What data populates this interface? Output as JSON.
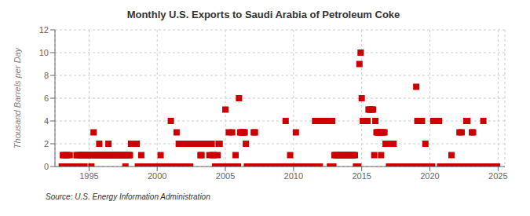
{
  "chart_data": {
    "type": "scatter",
    "title": "Monthly U.S. Exports to Saudi Arabia of Petroleum Coke",
    "ylabel": "Thousand Barrels per Day",
    "source": "Source: U.S. Energy Information Administration",
    "color": "#cc0000",
    "marker": "square",
    "grid": true,
    "xlim": [
      1992.5,
      2025.5
    ],
    "xticks": [
      1995,
      2000,
      2005,
      2010,
      2015,
      2020,
      2025
    ],
    "ylim": [
      0,
      12
    ],
    "yticks": [
      0,
      2,
      4,
      6,
      8,
      10,
      12
    ],
    "x": [
      1993.0,
      1993.08,
      1993.17,
      1993.25,
      1993.33,
      1993.42,
      1993.5,
      1993.58,
      1993.67,
      1993.75,
      1993.83,
      1993.92,
      1994.0,
      1994.08,
      1994.17,
      1994.25,
      1994.33,
      1994.42,
      1994.5,
      1994.58,
      1994.67,
      1994.75,
      1994.83,
      1994.92,
      1995.0,
      1995.08,
      1995.17,
      1995.25,
      1995.33,
      1995.42,
      1995.5,
      1995.58,
      1995.67,
      1995.75,
      1995.83,
      1995.92,
      1996.0,
      1996.08,
      1996.17,
      1996.25,
      1996.33,
      1996.42,
      1996.5,
      1996.58,
      1996.67,
      1996.75,
      1996.83,
      1996.92,
      1997.0,
      1997.08,
      1997.17,
      1997.25,
      1997.33,
      1997.42,
      1997.5,
      1997.58,
      1997.67,
      1997.75,
      1997.83,
      1997.92,
      1998.0,
      1998.08,
      1998.17,
      1998.25,
      1998.33,
      1998.42,
      1998.5,
      1998.58,
      1998.67,
      1998.75,
      1998.83,
      1998.92,
      1999.0,
      1999.08,
      1999.17,
      1999.25,
      1999.33,
      1999.42,
      1999.5,
      1999.58,
      1999.67,
      1999.75,
      1999.83,
      1999.92,
      2000.0,
      2000.08,
      2000.17,
      2000.25,
      2000.33,
      2000.42,
      2000.5,
      2000.58,
      2000.67,
      2000.75,
      2000.83,
      2000.92,
      2001.0,
      2001.08,
      2001.17,
      2001.25,
      2001.33,
      2001.42,
      2001.5,
      2001.58,
      2001.67,
      2001.75,
      2001.83,
      2001.92,
      2002.0,
      2002.08,
      2002.17,
      2002.25,
      2002.33,
      2002.42,
      2002.5,
      2002.58,
      2002.67,
      2002.75,
      2002.83,
      2002.92,
      2003.0,
      2003.08,
      2003.17,
      2003.25,
      2003.33,
      2003.42,
      2003.5,
      2003.58,
      2003.67,
      2003.75,
      2003.83,
      2003.92,
      2004.0,
      2004.08,
      2004.17,
      2004.25,
      2004.33,
      2004.42,
      2004.5,
      2004.58,
      2004.67,
      2004.75,
      2004.83,
      2004.92,
      2005.0,
      2005.08,
      2005.17,
      2005.25,
      2005.33,
      2005.42,
      2005.5,
      2005.58,
      2005.67,
      2005.75,
      2005.83,
      2005.92,
      2006.0,
      2006.08,
      2006.17,
      2006.25,
      2006.33,
      2006.42,
      2006.5,
      2006.58,
      2006.67,
      2006.75,
      2006.83,
      2006.92,
      2007.0,
      2007.08,
      2007.17,
      2007.25,
      2007.33,
      2007.42,
      2007.5,
      2007.58,
      2007.67,
      2007.75,
      2007.83,
      2007.92,
      2008.0,
      2008.08,
      2008.17,
      2008.25,
      2008.33,
      2008.42,
      2008.5,
      2008.58,
      2008.67,
      2008.75,
      2008.83,
      2008.92,
      2009.0,
      2009.08,
      2009.17,
      2009.25,
      2009.33,
      2009.42,
      2009.5,
      2009.58,
      2009.67,
      2009.75,
      2009.83,
      2009.92,
      2010.0,
      2010.08,
      2010.17,
      2010.25,
      2010.33,
      2010.42,
      2010.5,
      2010.58,
      2010.67,
      2010.75,
      2010.83,
      2010.92,
      2011.0,
      2011.08,
      2011.17,
      2011.25,
      2011.33,
      2011.42,
      2011.5,
      2011.58,
      2011.67,
      2011.75,
      2011.83,
      2011.92,
      2012.0,
      2012.08,
      2012.17,
      2012.25,
      2012.33,
      2012.42,
      2012.5,
      2012.58,
      2012.67,
      2012.75,
      2012.83,
      2012.92,
      2013.0,
      2013.08,
      2013.17,
      2013.25,
      2013.33,
      2013.42,
      2013.5,
      2013.58,
      2013.67,
      2013.75,
      2013.83,
      2013.92,
      2014.0,
      2014.08,
      2014.17,
      2014.25,
      2014.33,
      2014.42,
      2014.5,
      2014.58,
      2014.67,
      2014.75,
      2014.83,
      2014.92,
      2015.0,
      2015.08,
      2015.17,
      2015.25,
      2015.33,
      2015.42,
      2015.5,
      2015.58,
      2015.67,
      2015.75,
      2015.83,
      2015.92,
      2016.0,
      2016.08,
      2016.17,
      2016.25,
      2016.33,
      2016.42,
      2016.5,
      2016.58,
      2016.67,
      2016.75,
      2016.83,
      2016.92,
      2017.0,
      2017.08,
      2017.17,
      2017.25,
      2017.33,
      2017.42,
      2017.5,
      2017.58,
      2017.67,
      2017.75,
      2017.83,
      2017.92,
      2018.0,
      2018.08,
      2018.17,
      2018.25,
      2018.33,
      2018.42,
      2018.5,
      2018.58,
      2018.67,
      2018.75,
      2018.83,
      2018.92,
      2019.0,
      2019.08,
      2019.17,
      2019.25,
      2019.33,
      2019.42,
      2019.5,
      2019.58,
      2019.67,
      2019.75,
      2019.83,
      2019.92,
      2020.0,
      2020.08,
      2020.17,
      2020.25,
      2020.33,
      2020.42,
      2020.5,
      2020.58,
      2020.67,
      2020.75,
      2020.83,
      2020.92,
      2021.0,
      2021.08,
      2021.17,
      2021.25,
      2021.33,
      2021.42,
      2021.5,
      2021.58,
      2021.67,
      2021.75,
      2021.83,
      2021.92,
      2022.0,
      2022.08,
      2022.17,
      2022.25,
      2022.33,
      2022.42,
      2022.5,
      2022.58,
      2022.67,
      2022.75,
      2022.83,
      2022.92,
      2023.0,
      2023.08,
      2023.17,
      2023.25,
      2023.33,
      2023.42,
      2023.5,
      2023.58,
      2023.67,
      2023.75,
      2023.83,
      2023.92,
      2024.0,
      2024.08,
      2024.17,
      2024.25,
      2024.33,
      2024.42,
      2024.5,
      2024.58,
      2024.67,
      2024.75,
      2024.83,
      2024.92
    ],
    "values": [
      0,
      1,
      1,
      0,
      1,
      1,
      0,
      1,
      0,
      0,
      0,
      0,
      0,
      1,
      1,
      0,
      1,
      1,
      1,
      1,
      0,
      1,
      1,
      1,
      1,
      1,
      0,
      1,
      3,
      1,
      1,
      1,
      1,
      2,
      1,
      1,
      1,
      1,
      1,
      1,
      1,
      2,
      1,
      1,
      1,
      1,
      1,
      1,
      1,
      1,
      1,
      1,
      1,
      1,
      1,
      1,
      0,
      1,
      1,
      1,
      1,
      2,
      2,
      2,
      2,
      2,
      2,
      0,
      0,
      0,
      1,
      0,
      0,
      0,
      0,
      0,
      0,
      0,
      0,
      0,
      0,
      0,
      0,
      0,
      0,
      0,
      0,
      1,
      0,
      0,
      0,
      0,
      0,
      0,
      0,
      0,
      4,
      0,
      0,
      0,
      0,
      3,
      0,
      2,
      2,
      2,
      2,
      0,
      2,
      2,
      2,
      2,
      0,
      0,
      2,
      2,
      2,
      2,
      2,
      2,
      2,
      2,
      1,
      1,
      2,
      2,
      2,
      2,
      2,
      2,
      1,
      2,
      2,
      1,
      1,
      0,
      0,
      1,
      2,
      2,
      0,
      0,
      0,
      0,
      5,
      0,
      0,
      3,
      0,
      0,
      3,
      0,
      0,
      1,
      0,
      0,
      6,
      3,
      3,
      3,
      3,
      3,
      2,
      0,
      0,
      0,
      0,
      0,
      0,
      3,
      3,
      0,
      0,
      0,
      0,
      0,
      0,
      0,
      0,
      0,
      0,
      0,
      0,
      0,
      0,
      0,
      0,
      0,
      0,
      0,
      0,
      0,
      0,
      0,
      0,
      0,
      0,
      4,
      0,
      0,
      0,
      1,
      0,
      0,
      0,
      0,
      3,
      0,
      0,
      0,
      0,
      0,
      0,
      0,
      0,
      0,
      0,
      0,
      0,
      0,
      0,
      0,
      0,
      4,
      4,
      4,
      4,
      0,
      4,
      4,
      4,
      4,
      4,
      4,
      4,
      4,
      0,
      0,
      4,
      0,
      1,
      1,
      1,
      1,
      1,
      1,
      1,
      1,
      1,
      1,
      1,
      1,
      1,
      1,
      1,
      1,
      1,
      1,
      1,
      0,
      0,
      0,
      9,
      10,
      6,
      4,
      4,
      4,
      4,
      4,
      5,
      5,
      5,
      5,
      5,
      1,
      4,
      3,
      3,
      3,
      3,
      1,
      3,
      3,
      3,
      2,
      2,
      2,
      0,
      0,
      0,
      0,
      2,
      0,
      0,
      0,
      0,
      0,
      0,
      0,
      0,
      0,
      0,
      0,
      0,
      0,
      0,
      0,
      0,
      0,
      0,
      0,
      7,
      4,
      4,
      4,
      0,
      4,
      0,
      0,
      2,
      0,
      0,
      0,
      0,
      0,
      0,
      4,
      4,
      4,
      4,
      4,
      4,
      0,
      0,
      0,
      0,
      0,
      0,
      0,
      0,
      0,
      0,
      1,
      0,
      0,
      0,
      0,
      0,
      0,
      3,
      0,
      3,
      0,
      0,
      0,
      4,
      4,
      0,
      0,
      0,
      3,
      3,
      0,
      0,
      0,
      0,
      0,
      0,
      0,
      0,
      4,
      0,
      0,
      0,
      0,
      0,
      0,
      0,
      0,
      0,
      0,
      0,
      0
    ]
  }
}
